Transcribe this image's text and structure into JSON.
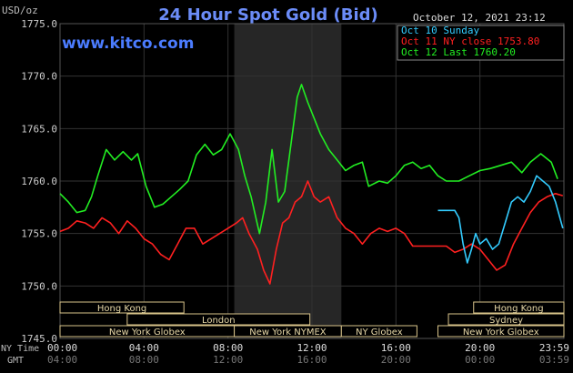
{
  "chart_data": {
    "type": "line",
    "title": "24 Hour Spot Gold (Bid)",
    "website": "www.kitco.com",
    "date_label": "October 12, 2021 23:12",
    "y_unit": "USD/oz",
    "ylim": [
      1745.0,
      1775.0
    ],
    "y_ticks": [
      "1775.0",
      "1770.0",
      "1765.0",
      "1760.0",
      "1755.0",
      "1750.0",
      "1745.0"
    ],
    "x_axis_rows": [
      {
        "label": "NY Time",
        "ticks": [
          "00:00",
          "04:00",
          "08:00",
          "12:00",
          "16:00",
          "20:00",
          "23:59"
        ]
      },
      {
        "label": "GMT",
        "ticks": [
          "04:00",
          "08:00",
          "12:00",
          "16:00",
          "20:00",
          "00:00",
          "03:59"
        ]
      }
    ],
    "xlim": [
      0,
      24
    ],
    "legend": [
      {
        "name": "Oct 10 Sunday",
        "color": "#33ccff"
      },
      {
        "name": "Oct 11 NY close 1753.80",
        "color": "#ff2020"
      },
      {
        "name": "Oct 12 Last 1760.20",
        "color": "#22ee22"
      }
    ],
    "highlight_band_hours": [
      8.3,
      13.4
    ],
    "sessions": [
      {
        "name": "Hong Kong",
        "start": 0,
        "end": 5.9
      },
      {
        "name": "London",
        "start": 3.2,
        "end": 11.9
      },
      {
        "name": "New York Globex",
        "start": 0,
        "end": 8.3
      },
      {
        "name": "New York NYMEX",
        "start": 8.3,
        "end": 13.4
      },
      {
        "name": "NY Globex",
        "start": 13.4,
        "end": 17.0
      },
      {
        "name": "Hong Kong",
        "start": 19.7,
        "end": 24
      },
      {
        "name": "Sydney",
        "start": 18.5,
        "end": 24
      },
      {
        "name": "New York Globex",
        "start": 18.0,
        "end": 24
      }
    ],
    "series": [
      {
        "name": "Oct 12 Last 1760.20",
        "color": "#22ee22",
        "points": [
          [
            0,
            1758.8
          ],
          [
            0.4,
            1758.0
          ],
          [
            0.8,
            1757.0
          ],
          [
            1.2,
            1757.2
          ],
          [
            1.5,
            1758.5
          ],
          [
            1.8,
            1760.5
          ],
          [
            2.2,
            1763.0
          ],
          [
            2.6,
            1762.0
          ],
          [
            3.0,
            1762.8
          ],
          [
            3.4,
            1762.0
          ],
          [
            3.7,
            1762.6
          ],
          [
            4.1,
            1759.5
          ],
          [
            4.5,
            1757.5
          ],
          [
            4.9,
            1757.8
          ],
          [
            5.3,
            1758.5
          ],
          [
            5.7,
            1759.2
          ],
          [
            6.1,
            1760.0
          ],
          [
            6.5,
            1762.5
          ],
          [
            6.9,
            1763.5
          ],
          [
            7.3,
            1762.5
          ],
          [
            7.7,
            1763.0
          ],
          [
            8.1,
            1764.5
          ],
          [
            8.5,
            1763.0
          ],
          [
            8.8,
            1760.5
          ],
          [
            9.1,
            1758.5
          ],
          [
            9.5,
            1755.0
          ],
          [
            9.8,
            1758.0
          ],
          [
            10.1,
            1763.0
          ],
          [
            10.4,
            1758.0
          ],
          [
            10.7,
            1759.0
          ],
          [
            11.0,
            1763.5
          ],
          [
            11.3,
            1768.0
          ],
          [
            11.5,
            1769.2
          ],
          [
            11.8,
            1767.5
          ],
          [
            12.1,
            1766.0
          ],
          [
            12.4,
            1764.5
          ],
          [
            12.8,
            1763.0
          ],
          [
            13.2,
            1762.0
          ],
          [
            13.6,
            1761.0
          ],
          [
            14.0,
            1761.5
          ],
          [
            14.4,
            1761.8
          ],
          [
            14.7,
            1759.5
          ],
          [
            15.2,
            1760.0
          ],
          [
            15.6,
            1759.8
          ],
          [
            16.0,
            1760.5
          ],
          [
            16.4,
            1761.5
          ],
          [
            16.8,
            1761.8
          ],
          [
            17.2,
            1761.2
          ],
          [
            17.6,
            1761.5
          ],
          [
            18.0,
            1760.5
          ],
          [
            18.4,
            1760.0
          ],
          [
            19.0,
            1760.0
          ],
          [
            19.5,
            1760.5
          ],
          [
            20.0,
            1761.0
          ],
          [
            20.5,
            1761.2
          ],
          [
            21.0,
            1761.5
          ],
          [
            21.5,
            1761.8
          ],
          [
            22.0,
            1760.8
          ],
          [
            22.4,
            1761.8
          ],
          [
            22.9,
            1762.6
          ],
          [
            23.4,
            1761.8
          ],
          [
            23.7,
            1760.2
          ]
        ]
      },
      {
        "name": "Oct 11 NY close 1753.80",
        "color": "#ff2020",
        "points": [
          [
            0,
            1755.2
          ],
          [
            0.4,
            1755.5
          ],
          [
            0.8,
            1756.2
          ],
          [
            1.2,
            1756.0
          ],
          [
            1.6,
            1755.5
          ],
          [
            2.0,
            1756.5
          ],
          [
            2.4,
            1756.0
          ],
          [
            2.8,
            1755.0
          ],
          [
            3.2,
            1756.2
          ],
          [
            3.6,
            1755.5
          ],
          [
            4.0,
            1754.5
          ],
          [
            4.4,
            1754.0
          ],
          [
            4.8,
            1753.0
          ],
          [
            5.2,
            1752.5
          ],
          [
            5.6,
            1754.0
          ],
          [
            6.0,
            1755.5
          ],
          [
            6.4,
            1755.5
          ],
          [
            6.8,
            1754.0
          ],
          [
            7.2,
            1754.5
          ],
          [
            7.6,
            1755.0
          ],
          [
            8.0,
            1755.5
          ],
          [
            8.4,
            1756.0
          ],
          [
            8.7,
            1756.5
          ],
          [
            9.0,
            1755.0
          ],
          [
            9.4,
            1753.5
          ],
          [
            9.7,
            1751.5
          ],
          [
            10.0,
            1750.2
          ],
          [
            10.3,
            1753.5
          ],
          [
            10.6,
            1756.0
          ],
          [
            10.9,
            1756.5
          ],
          [
            11.2,
            1758.0
          ],
          [
            11.5,
            1758.5
          ],
          [
            11.8,
            1760.0
          ],
          [
            12.1,
            1758.5
          ],
          [
            12.4,
            1758.0
          ],
          [
            12.8,
            1758.5
          ],
          [
            13.2,
            1756.5
          ],
          [
            13.6,
            1755.5
          ],
          [
            14.0,
            1755.0
          ],
          [
            14.4,
            1754.0
          ],
          [
            14.8,
            1755.0
          ],
          [
            15.2,
            1755.5
          ],
          [
            15.6,
            1755.2
          ],
          [
            16.0,
            1755.5
          ],
          [
            16.4,
            1755.0
          ],
          [
            16.8,
            1753.8
          ],
          [
            17.2,
            1753.8
          ],
          [
            17.6,
            1753.8
          ],
          [
            18.0,
            1753.8
          ],
          [
            18.4,
            1753.8
          ],
          [
            18.8,
            1753.2
          ],
          [
            19.2,
            1753.5
          ],
          [
            19.6,
            1754.0
          ],
          [
            20.0,
            1753.5
          ],
          [
            20.4,
            1752.5
          ],
          [
            20.8,
            1751.5
          ],
          [
            21.2,
            1752.0
          ],
          [
            21.6,
            1754.0
          ],
          [
            22.0,
            1755.5
          ],
          [
            22.4,
            1757.0
          ],
          [
            22.8,
            1758.0
          ],
          [
            23.2,
            1758.5
          ],
          [
            23.6,
            1758.8
          ],
          [
            23.95,
            1758.6
          ]
        ]
      },
      {
        "name": "Oct 10 Sunday",
        "color": "#33ccff",
        "points": [
          [
            18.0,
            1757.2
          ],
          [
            18.5,
            1757.2
          ],
          [
            18.8,
            1757.2
          ],
          [
            19.0,
            1756.5
          ],
          [
            19.2,
            1754.0
          ],
          [
            19.4,
            1752.2
          ],
          [
            19.6,
            1753.5
          ],
          [
            19.8,
            1755.0
          ],
          [
            20.0,
            1754.0
          ],
          [
            20.3,
            1754.5
          ],
          [
            20.6,
            1753.5
          ],
          [
            20.9,
            1754.0
          ],
          [
            21.2,
            1756.0
          ],
          [
            21.5,
            1758.0
          ],
          [
            21.8,
            1758.5
          ],
          [
            22.1,
            1758.0
          ],
          [
            22.4,
            1759.0
          ],
          [
            22.7,
            1760.5
          ],
          [
            23.0,
            1760.0
          ],
          [
            23.3,
            1759.5
          ],
          [
            23.6,
            1758.0
          ],
          [
            23.95,
            1755.5
          ]
        ]
      }
    ]
  }
}
